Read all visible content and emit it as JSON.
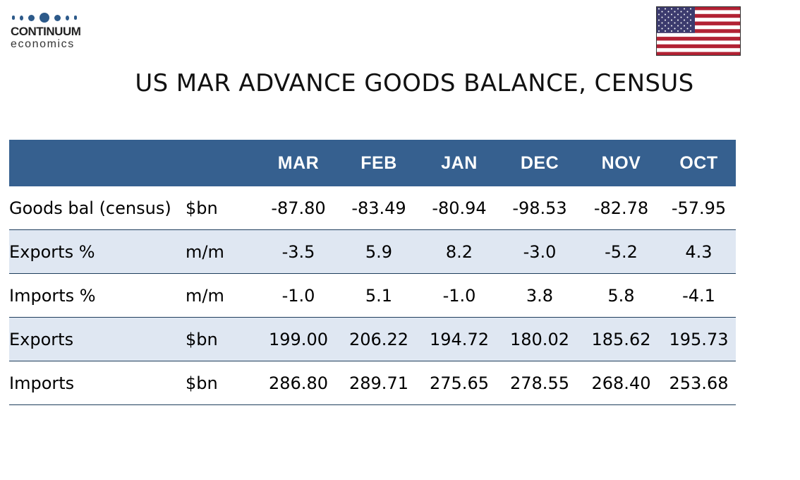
{
  "logo": {
    "name": "CONTINUUM",
    "sub": "economics"
  },
  "colors": {
    "header_bg": "#36608f",
    "stripe_bg": "#dfe7f2",
    "logo_blue": "#2d5a8a"
  },
  "title": "US MAR ADVANCE GOODS BALANCE, CENSUS",
  "table": {
    "columns": [
      "MAR",
      "FEB",
      "JAN",
      "DEC",
      "NOV",
      "OCT"
    ],
    "rows": [
      {
        "label": "Goods bal (census)",
        "unit": "$bn",
        "values": [
          "-87.80",
          "-83.49",
          "-80.94",
          "-98.53",
          "-82.78",
          "-57.95"
        ]
      },
      {
        "label": "Exports %",
        "unit": "m/m",
        "values": [
          "-3.5",
          "5.9",
          "8.2",
          "-3.0",
          "-5.2",
          "4.3"
        ]
      },
      {
        "label": "Imports %",
        "unit": "m/m",
        "values": [
          "-1.0",
          "5.1",
          "-1.0",
          "3.8",
          "5.8",
          "-4.1"
        ]
      },
      {
        "label": "Exports",
        "unit": "$bn",
        "values": [
          "199.00",
          "206.22",
          "194.72",
          "180.02",
          "185.62",
          "195.73"
        ]
      },
      {
        "label": "Imports",
        "unit": "$bn",
        "values": [
          "286.80",
          "289.71",
          "275.65",
          "278.55",
          "268.40",
          "253.68"
        ]
      }
    ]
  }
}
